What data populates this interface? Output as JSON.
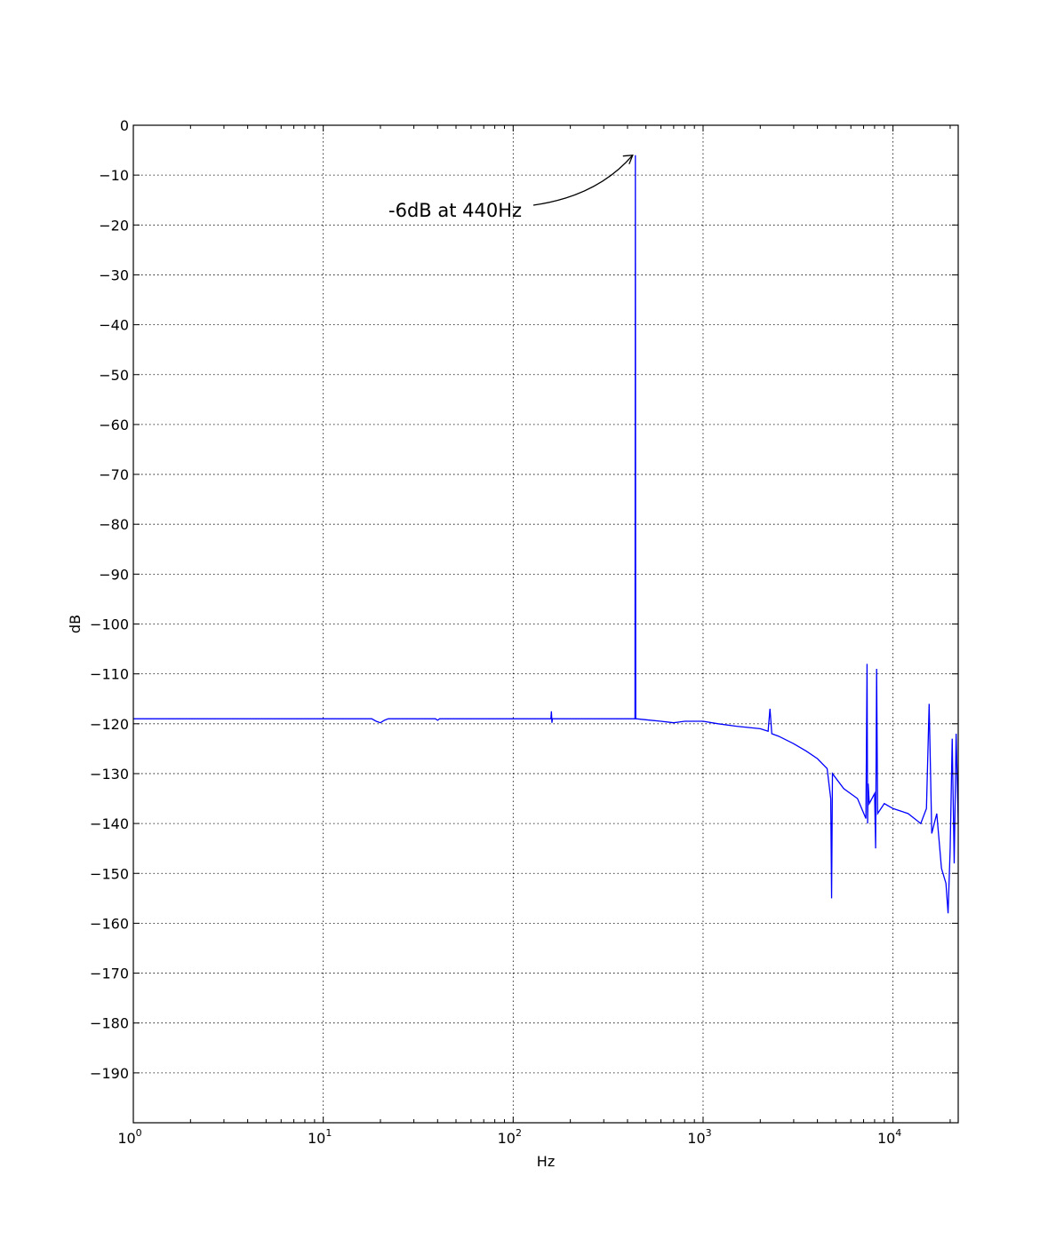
{
  "chart_data": {
    "type": "line",
    "xlabel": "Hz",
    "ylabel": "dB",
    "xscale": "log",
    "xlim": [
      1,
      22050
    ],
    "ylim": [
      -200,
      0
    ],
    "grid": true,
    "x_ticks": [
      {
        "base": "10",
        "exp": "0"
      },
      {
        "base": "10",
        "exp": "1"
      },
      {
        "base": "10",
        "exp": "2"
      },
      {
        "base": "10",
        "exp": "3"
      },
      {
        "base": "10",
        "exp": "4"
      }
    ],
    "y_ticks": [
      "0",
      "−10",
      "−20",
      "−30",
      "−40",
      "−50",
      "−60",
      "−70",
      "−80",
      "−90",
      "−100",
      "−110",
      "−120",
      "−130",
      "−140",
      "−150",
      "−160",
      "−170",
      "−180",
      "−190"
    ],
    "series": [
      {
        "color": "#0000ff",
        "x": [
          1,
          2,
          5,
          10,
          18,
          19,
          20,
          21,
          22,
          30,
          39,
          40,
          41,
          60,
          100,
          158,
          159,
          160,
          161,
          200,
          300,
          400,
          435,
          438,
          440,
          442,
          445,
          500,
          600,
          700,
          800,
          1000,
          1200,
          1500,
          2000,
          2200,
          2250,
          2300,
          2500,
          3000,
          3500,
          4000,
          4500,
          4700,
          4750,
          4800,
          5500,
          6500,
          7200,
          7300,
          7350,
          7400,
          7500,
          8000,
          8100,
          8200,
          8300,
          9000,
          10000,
          12000,
          14000,
          15000,
          15500,
          16000,
          17000,
          18000,
          19000,
          19500,
          20000,
          20500,
          21000,
          21500,
          22050
        ],
        "y": [
          -119,
          -119,
          -119,
          -119,
          -119,
          -119.5,
          -119.8,
          -119.3,
          -119,
          -119,
          -119,
          -119.3,
          -119,
          -119,
          -119,
          -119,
          -117.5,
          -119.8,
          -119,
          -119,
          -119,
          -119,
          -119,
          -119,
          -6,
          -119,
          -119,
          -119.2,
          -119.5,
          -119.8,
          -119.5,
          -119.5,
          -120,
          -120.5,
          -121,
          -121.5,
          -117,
          -122,
          -122.5,
          -124,
          -125.5,
          -127,
          -129,
          -135,
          -155,
          -130,
          -133,
          -135,
          -139,
          -108,
          -140,
          -132,
          -136,
          -134,
          -145,
          -109,
          -138,
          -136,
          -137,
          -138,
          -140,
          -137,
          -116,
          -142,
          -138,
          -149,
          -152,
          -158,
          -145,
          -123,
          -148,
          -122,
          -140
        ]
      }
    ],
    "annotations": [
      {
        "text": "-6dB at 440Hz",
        "x": 440,
        "y": -6
      }
    ]
  }
}
